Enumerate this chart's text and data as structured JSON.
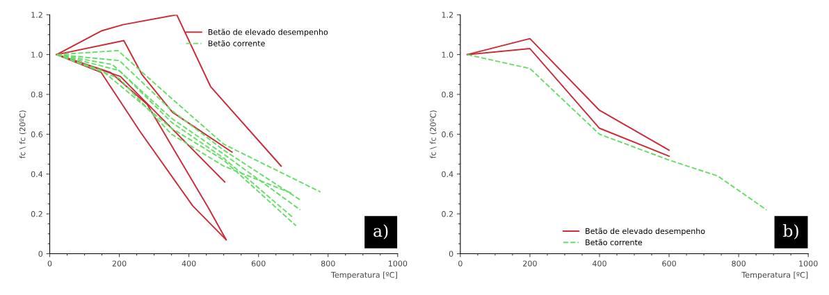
{
  "chart_data": [
    {
      "type": "line",
      "xlabel": "Temperatura [ºC]",
      "ylabel": "fc \\ fc (20ºC)",
      "annotations": [
        "a)"
      ],
      "legend": "top right",
      "xlim": [
        0,
        1000
      ],
      "xticks": [
        0,
        200,
        400,
        600,
        800,
        1000
      ],
      "ylim": [
        0,
        1.2
      ],
      "yticks": [
        0,
        0.2,
        0.4,
        0.6,
        0.8,
        {
          "value": 1.0,
          "label": "1.0"
        },
        1.2
      ],
      "series": [
        {
          "name": "Betão de elevado desempenho",
          "color": "#cc2a36",
          "line_style": "solid",
          "x": [
            20,
            150,
            210,
            365,
            462,
            665
          ],
          "values": [
            1.0,
            1.12,
            1.15,
            1.2,
            0.84,
            0.44
          ]
        },
        {
          "color": "#cc2a36",
          "line_style": "solid",
          "x": [
            20,
            213,
            265,
            353,
            524
          ],
          "values": [
            1.0,
            1.07,
            0.9,
            0.71,
            0.51
          ]
        },
        {
          "color": "#cc2a36",
          "line_style": "solid",
          "x": [
            20,
            203,
            503
          ],
          "values": [
            1.0,
            0.89,
            0.36
          ]
        },
        {
          "color": "#cc2a36",
          "line_style": "solid",
          "x": [
            20,
            175,
            280,
            456,
            507
          ],
          "values": [
            1.0,
            0.91,
            0.75,
            0.23,
            0.07
          ]
        },
        {
          "color": "#cc2a36",
          "line_style": "solid",
          "x": [
            20,
            148,
            261,
            411,
            507
          ],
          "values": [
            1.0,
            0.91,
            0.61,
            0.24,
            0.07
          ]
        },
        {
          "name": "Betão corrente",
          "color": "#66dd66",
          "line_style": "dashed",
          "x": [
            20,
            196,
            350,
            500,
            778
          ],
          "values": [
            1.0,
            1.02,
            0.78,
            0.55,
            0.31
          ]
        },
        {
          "color": "#66dd66",
          "line_style": "dashed",
          "x": [
            20,
            200,
            350,
            500,
            720
          ],
          "values": [
            1.0,
            0.97,
            0.72,
            0.52,
            0.27
          ]
        },
        {
          "color": "#66dd66",
          "line_style": "dashed",
          "x": [
            20,
            180,
            350,
            500,
            720
          ],
          "values": [
            1.0,
            0.95,
            0.68,
            0.5,
            0.22
          ]
        },
        {
          "color": "#66dd66",
          "line_style": "dashed",
          "x": [
            20,
            200,
            350,
            500,
            700
          ],
          "values": [
            1.0,
            0.92,
            0.66,
            0.48,
            0.18
          ]
        },
        {
          "color": "#66dd66",
          "line_style": "dashed",
          "x": [
            20,
            150,
            350,
            500,
            708
          ],
          "values": [
            1.0,
            0.92,
            0.63,
            0.47,
            0.14
          ]
        },
        {
          "color": "#66dd66",
          "line_style": "dashed",
          "x": [
            20,
            200,
            350,
            500,
            700
          ],
          "values": [
            1.0,
            0.88,
            0.6,
            0.44,
            0.3
          ]
        }
      ]
    },
    {
      "type": "line",
      "xlabel": "Temperatura [ºC]",
      "ylabel": "fc \\ fc (20ºC)",
      "annotations": [
        "b)"
      ],
      "legend": "bottom",
      "xlim": [
        0,
        1000
      ],
      "xticks": [
        0,
        200,
        400,
        600,
        800,
        1000
      ],
      "ylim": [
        0,
        1.2
      ],
      "yticks": [
        0,
        0.2,
        0.4,
        0.6,
        0.8,
        {
          "value": 1.0,
          "label": "1.0"
        },
        1.2
      ],
      "series": [
        {
          "name": "Betão de elevado desempenho",
          "color": "#cc2a36",
          "line_style": "solid",
          "x": [
            20,
            200,
            400,
            600
          ],
          "values": [
            1.0,
            1.08,
            0.72,
            0.52
          ]
        },
        {
          "color": "#cc2a36",
          "line_style": "solid",
          "x": [
            20,
            200,
            400,
            600
          ],
          "values": [
            1.0,
            1.03,
            0.63,
            0.49
          ]
        },
        {
          "name": "Betão corrente",
          "color": "#66dd66",
          "line_style": "dashed",
          "x": [
            20,
            200,
            400,
            600,
            740,
            880
          ],
          "values": [
            1.0,
            0.93,
            0.6,
            0.47,
            0.39,
            0.22
          ]
        }
      ]
    }
  ]
}
